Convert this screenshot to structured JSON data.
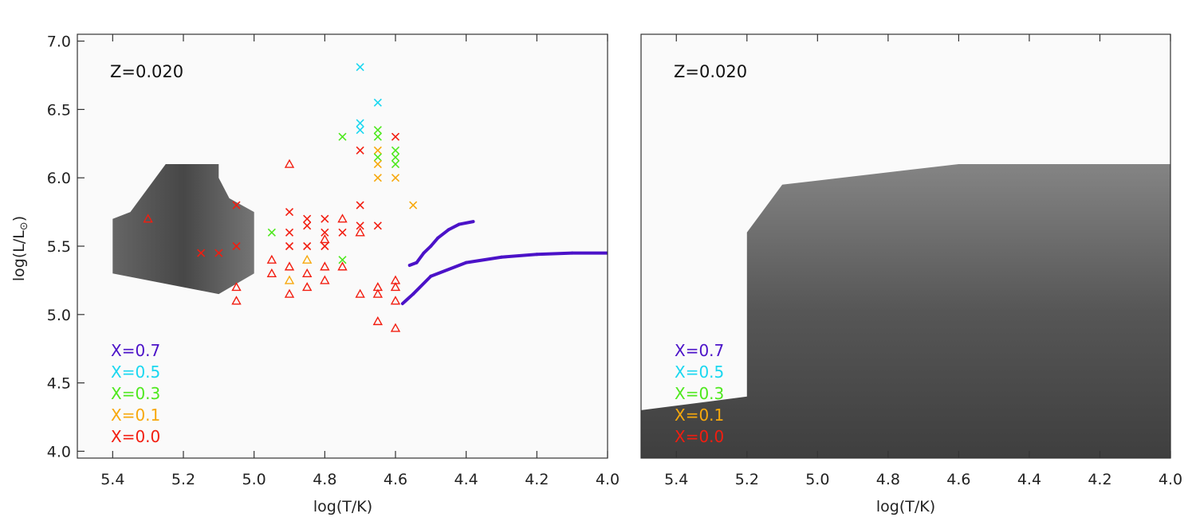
{
  "colors": {
    "X=0.7": "#4b12c8",
    "X=0.5": "#1ad7f0",
    "X=0.3": "#4ee81e",
    "X=0.1": "#f7a80c",
    "X=0.0": "#f21d10",
    "grid_background": "#fafafa",
    "shading": "#666666"
  },
  "chart_data": [
    {
      "type": "scatter",
      "panel": "left",
      "annotation": "Z=0.020",
      "xlabel": "log(T/K)",
      "ylabel": "log(L/L",
      "ylabel_symbol": "⊙",
      "ylabel_close": ")",
      "xlim": [
        5.5,
        4.0
      ],
      "ylim": [
        3.95,
        7.05
      ],
      "xticks": [
        "5.4",
        "5.2",
        "5.0",
        "4.8",
        "4.6",
        "4.4",
        "4.2",
        "4.0"
      ],
      "yticks": [
        "4.0",
        "4.5",
        "5.0",
        "5.5",
        "6.0",
        "6.5",
        "7.0"
      ],
      "legend": [
        "X=0.7",
        "X=0.5",
        "X=0.3",
        "X=0.1",
        "X=0.0"
      ],
      "tracks": [
        {
          "x": [
            4.56,
            4.54,
            4.52,
            4.5,
            4.48,
            4.45,
            4.42,
            4.38
          ],
          "y": [
            5.36,
            5.38,
            5.45,
            5.5,
            5.56,
            5.62,
            5.66,
            5.68
          ],
          "c": [
            "X=0.7",
            "X=0.7",
            "X=0.7",
            "X=0.7",
            "X=0.7",
            "X=0.7",
            "X=0.7",
            "X=0.7"
          ]
        },
        {
          "x": [
            4.58,
            4.55,
            4.5,
            4.4,
            4.3,
            4.2,
            4.1,
            4.0
          ],
          "y": [
            5.08,
            5.15,
            5.28,
            5.38,
            5.42,
            5.44,
            5.45,
            5.45
          ],
          "c": [
            "X=0.7",
            "X=0.7",
            "X=0.7",
            "X=0.7",
            "X=0.7",
            "X=0.7",
            "X=0.7",
            "X=0.7"
          ]
        }
      ],
      "shaded_regions": [
        {
          "x": [
            5.4,
            5.1,
            5.0,
            5.0,
            5.07,
            5.1,
            5.1,
            5.25,
            5.35,
            5.4
          ],
          "y": [
            5.3,
            5.15,
            5.3,
            5.75,
            5.85,
            6.0,
            6.1,
            6.1,
            5.75,
            5.7
          ]
        }
      ],
      "markers_x": [
        {
          "x": 4.7,
          "y": 6.81,
          "c": "X=0.5"
        },
        {
          "x": 4.65,
          "y": 6.55,
          "c": "X=0.5"
        },
        {
          "x": 4.7,
          "y": 6.4,
          "c": "X=0.5"
        },
        {
          "x": 4.7,
          "y": 6.35,
          "c": "X=0.5"
        },
        {
          "x": 4.65,
          "y": 6.35,
          "c": "X=0.3"
        },
        {
          "x": 4.65,
          "y": 6.3,
          "c": "X=0.3"
        },
        {
          "x": 4.75,
          "y": 6.3,
          "c": "X=0.3"
        },
        {
          "x": 4.6,
          "y": 6.3,
          "c": "X=0.0"
        },
        {
          "x": 4.7,
          "y": 6.2,
          "c": "X=0.0"
        },
        {
          "x": 4.65,
          "y": 6.2,
          "c": "X=0.1"
        },
        {
          "x": 4.6,
          "y": 6.2,
          "c": "X=0.3"
        },
        {
          "x": 4.65,
          "y": 6.15,
          "c": "X=0.3"
        },
        {
          "x": 4.6,
          "y": 6.15,
          "c": "X=0.3"
        },
        {
          "x": 4.65,
          "y": 6.1,
          "c": "X=0.1"
        },
        {
          "x": 4.6,
          "y": 6.1,
          "c": "X=0.3"
        },
        {
          "x": 4.65,
          "y": 6.0,
          "c": "X=0.1"
        },
        {
          "x": 4.6,
          "y": 6.0,
          "c": "X=0.1"
        },
        {
          "x": 4.55,
          "y": 5.8,
          "c": "X=0.1"
        },
        {
          "x": 5.05,
          "y": 5.8,
          "c": "X=0.0"
        },
        {
          "x": 4.9,
          "y": 5.75,
          "c": "X=0.0"
        },
        {
          "x": 4.85,
          "y": 5.7,
          "c": "X=0.0"
        },
        {
          "x": 4.8,
          "y": 5.7,
          "c": "X=0.0"
        },
        {
          "x": 4.7,
          "y": 5.8,
          "c": "X=0.0"
        },
        {
          "x": 4.95,
          "y": 5.6,
          "c": "X=0.3"
        },
        {
          "x": 4.9,
          "y": 5.6,
          "c": "X=0.0"
        },
        {
          "x": 4.85,
          "y": 5.65,
          "c": "X=0.0"
        },
        {
          "x": 4.8,
          "y": 5.6,
          "c": "X=0.0"
        },
        {
          "x": 4.75,
          "y": 5.6,
          "c": "X=0.0"
        },
        {
          "x": 4.7,
          "y": 5.65,
          "c": "X=0.0"
        },
        {
          "x": 4.65,
          "y": 5.65,
          "c": "X=0.0"
        },
        {
          "x": 4.9,
          "y": 5.5,
          "c": "X=0.0"
        },
        {
          "x": 4.85,
          "y": 5.5,
          "c": "X=0.0"
        },
        {
          "x": 4.8,
          "y": 5.5,
          "c": "X=0.0"
        },
        {
          "x": 5.1,
          "y": 5.45,
          "c": "X=0.0"
        },
        {
          "x": 5.05,
          "y": 5.5,
          "c": "X=0.0"
        },
        {
          "x": 5.15,
          "y": 5.45,
          "c": "X=0.0"
        },
        {
          "x": 4.75,
          "y": 5.4,
          "c": "X=0.3"
        }
      ],
      "markers_tri": [
        {
          "x": 5.3,
          "y": 5.7,
          "c": "X=0.0"
        },
        {
          "x": 4.9,
          "y": 6.1,
          "c": "X=0.0"
        },
        {
          "x": 4.7,
          "y": 5.6,
          "c": "X=0.0"
        },
        {
          "x": 4.75,
          "y": 5.7,
          "c": "X=0.0"
        },
        {
          "x": 4.8,
          "y": 5.55,
          "c": "X=0.0"
        },
        {
          "x": 4.85,
          "y": 5.4,
          "c": "X=0.1"
        },
        {
          "x": 4.9,
          "y": 5.35,
          "c": "X=0.0"
        },
        {
          "x": 4.95,
          "y": 5.4,
          "c": "X=0.0"
        },
        {
          "x": 4.85,
          "y": 5.3,
          "c": "X=0.0"
        },
        {
          "x": 4.9,
          "y": 5.25,
          "c": "X=0.1"
        },
        {
          "x": 4.8,
          "y": 5.25,
          "c": "X=0.0"
        },
        {
          "x": 4.8,
          "y": 5.35,
          "c": "X=0.0"
        },
        {
          "x": 4.85,
          "y": 5.2,
          "c": "X=0.0"
        },
        {
          "x": 4.95,
          "y": 5.3,
          "c": "X=0.0"
        },
        {
          "x": 4.75,
          "y": 5.35,
          "c": "X=0.0"
        },
        {
          "x": 4.9,
          "y": 5.15,
          "c": "X=0.0"
        },
        {
          "x": 5.05,
          "y": 5.2,
          "c": "X=0.0"
        },
        {
          "x": 5.05,
          "y": 5.1,
          "c": "X=0.0"
        },
        {
          "x": 4.65,
          "y": 5.2,
          "c": "X=0.0"
        },
        {
          "x": 4.65,
          "y": 5.15,
          "c": "X=0.0"
        },
        {
          "x": 4.6,
          "y": 5.25,
          "c": "X=0.0"
        },
        {
          "x": 4.6,
          "y": 5.1,
          "c": "X=0.0"
        },
        {
          "x": 4.7,
          "y": 5.15,
          "c": "X=0.0"
        },
        {
          "x": 4.65,
          "y": 4.95,
          "c": "X=0.0"
        },
        {
          "x": 4.6,
          "y": 4.9,
          "c": "X=0.0"
        },
        {
          "x": 4.6,
          "y": 5.2,
          "c": "X=0.0"
        }
      ]
    },
    {
      "type": "scatter",
      "panel": "right",
      "annotation": "Z=0.020",
      "xlabel": "log(T/K)",
      "ylabel": "",
      "xlim": [
        5.5,
        4.0
      ],
      "ylim": [
        3.95,
        7.05
      ],
      "xticks": [
        "5.4",
        "5.2",
        "5.0",
        "4.8",
        "4.6",
        "4.4",
        "4.2",
        "4.0"
      ],
      "yticks": [],
      "legend": [
        "X=0.7",
        "X=0.5",
        "X=0.3",
        "X=0.1",
        "X=0.0"
      ],
      "tracks": [],
      "shaded_regions": [
        {
          "x": [
            5.5,
            5.2,
            5.2,
            5.1,
            4.6,
            4.0,
            4.0,
            5.5
          ],
          "y": [
            4.3,
            4.4,
            5.6,
            5.95,
            6.1,
            6.1,
            3.95,
            3.95
          ]
        }
      ],
      "markers_x": [],
      "markers_tri": []
    }
  ]
}
